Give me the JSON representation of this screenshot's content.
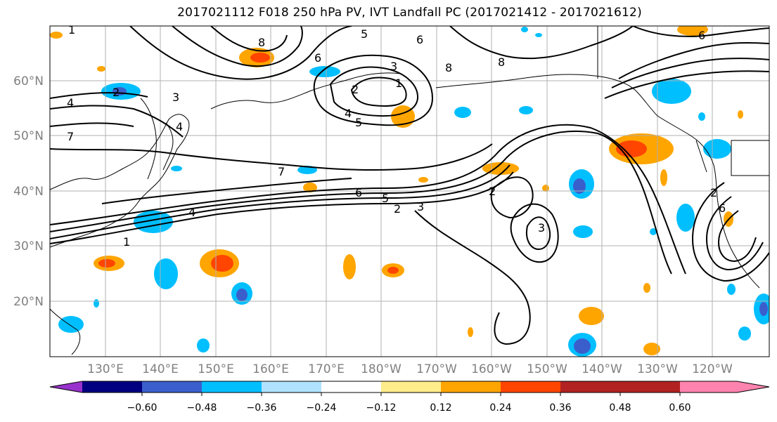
{
  "title": "2017021112 F018 250 hPa PV, IVT Landfall PC (2017021412 - 2017021612)",
  "map": {
    "lat_labels": [
      "60°N",
      "50°N",
      "40°N",
      "30°N",
      "20°N"
    ],
    "lon_labels": [
      "130°E",
      "140°E",
      "150°E",
      "160°E",
      "170°E",
      "180°W",
      "170°W",
      "160°W",
      "150°W",
      "140°W",
      "130°W",
      "120°W"
    ],
    "contour_labels": [
      "1",
      "2",
      "3",
      "4",
      "7",
      "8",
      "6",
      "5",
      "4",
      "2",
      "1",
      "3",
      "5",
      "6",
      "8",
      "8",
      "7",
      "6",
      "5",
      "2",
      "3",
      "6",
      "2",
      "3",
      "4",
      "1",
      "2",
      "6",
      "4"
    ]
  },
  "colorbar": {
    "ticks": [
      "−0.60",
      "−0.48",
      "−0.36",
      "−0.24",
      "−0.12",
      "0.12",
      "0.24",
      "0.36",
      "0.48",
      "0.60"
    ],
    "colors": [
      "#9932cc",
      "#000080",
      "#3a5fcd",
      "#00bfff",
      "#b0e2ff",
      "#ffffff",
      "#ffec8b",
      "#ffa500",
      "#ff4500",
      "#b22222",
      "#ff83af"
    ]
  }
}
